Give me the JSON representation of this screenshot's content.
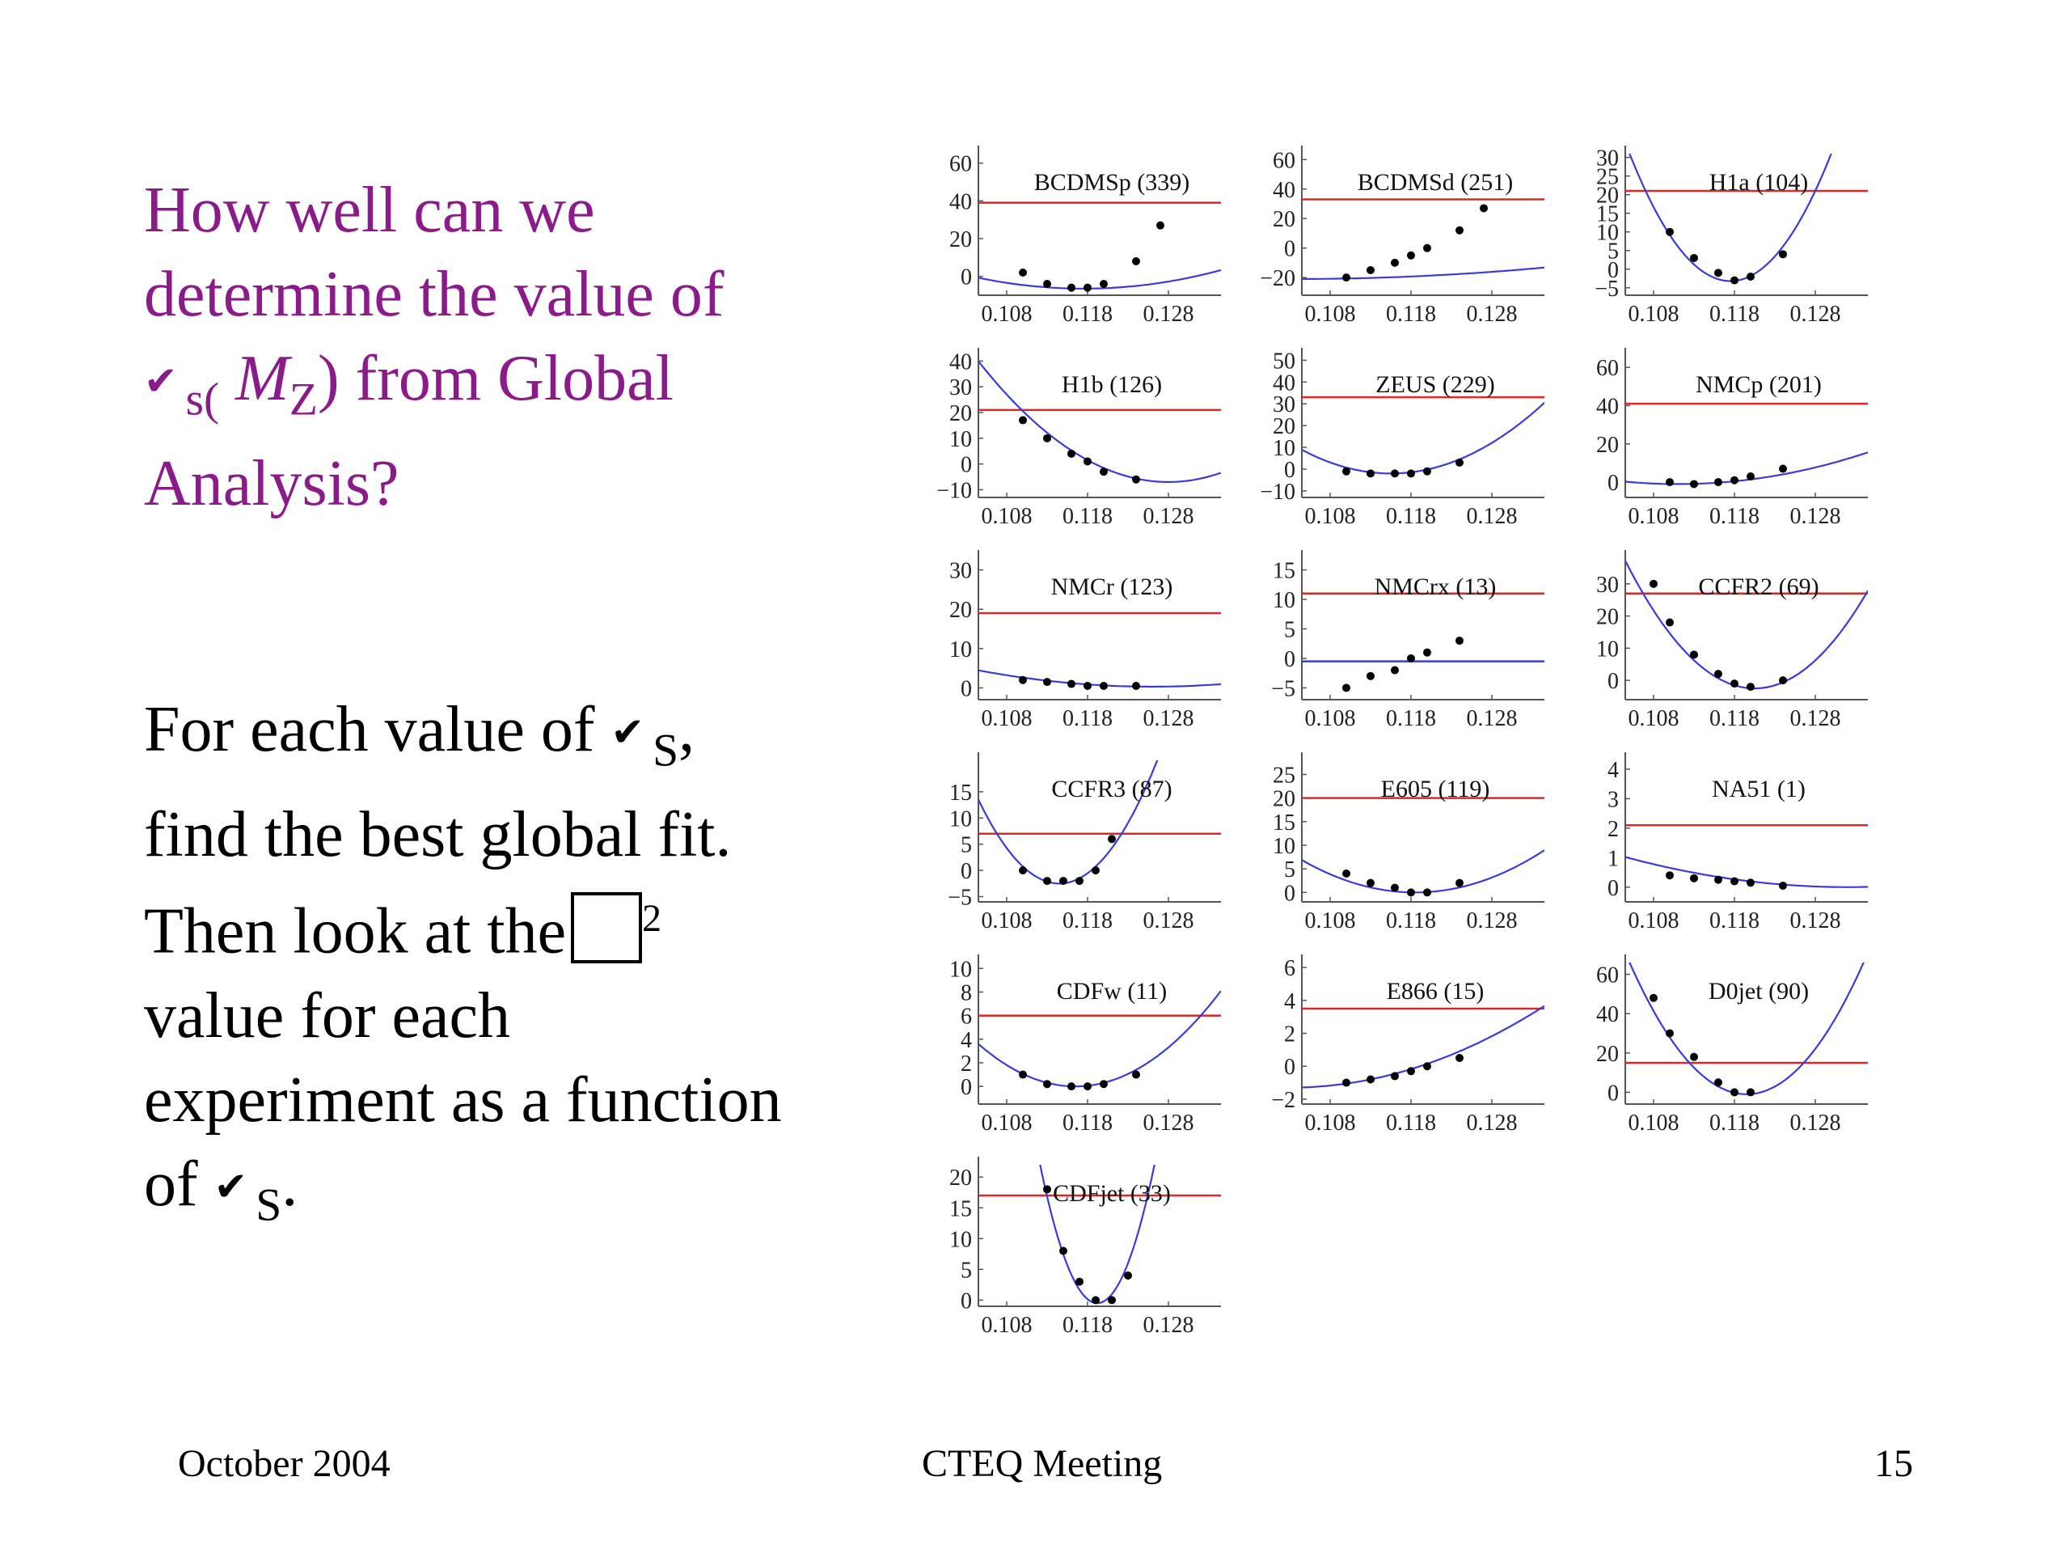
{
  "slide": {
    "title_lines": [
      {
        "text": "How well can we"
      },
      {
        "text": "determine the value of"
      },
      {
        "pre": "s(",
        "mz": "M",
        "mzsub": "Z",
        "post": ") from Global"
      },
      {
        "text": "Analysis?"
      }
    ],
    "body_lines": [
      {
        "pre": "For each value of",
        "sub": "S",
        "post": ","
      },
      {
        "text": "find the best global fit."
      },
      {
        "pre": "Then look at the",
        "sup": "2"
      },
      {
        "text": "value for each"
      },
      {
        "text": "experiment as a function"
      },
      {
        "pre": "of",
        "sub": "S",
        "post": "."
      }
    ],
    "icons": {
      "alpha_symbol": "check-mark-icon",
      "chi_symbol": "empty-box-icon"
    },
    "colors": {
      "title": "#8b1a8b",
      "body": "#000000",
      "curve": "#3b3bd6",
      "threshold": "#d62a2a",
      "points": "#000000"
    },
    "footer": {
      "date": "October 2004",
      "meeting": "CTEQ Meeting",
      "page": "15"
    }
  },
  "chart_data": [
    {
      "type": "scatter",
      "title": "BCDMSp (339)",
      "x": [
        0.11,
        0.113,
        0.116,
        0.118,
        0.12,
        0.124,
        0.127
      ],
      "y": [
        2,
        -4,
        -6,
        -6,
        -4,
        8,
        27
      ],
      "curve": {
        "x0": 0.1175,
        "a": 34000,
        "c": -6.5
      },
      "threshold": 39,
      "xticks": [
        0.108,
        0.118,
        0.128
      ],
      "yticks": [
        0,
        20,
        40,
        60
      ],
      "xlim": [
        0.1045,
        0.1345
      ],
      "ylim": [
        -10,
        65
      ]
    },
    {
      "type": "scatter",
      "title": "BCDMSd (251)",
      "x": [
        0.11,
        0.113,
        0.116,
        0.118,
        0.12,
        0.124,
        0.127
      ],
      "y": [
        -20,
        -15,
        -10,
        -5,
        0,
        12,
        27
      ],
      "curve": {
        "x0": 0.1035,
        "a": 8100,
        "c": -21
      },
      "threshold": 33,
      "xticks": [
        0.108,
        0.118,
        0.128
      ],
      "yticks": [
        -20,
        0,
        20,
        40,
        60
      ],
      "xlim": [
        0.1045,
        0.1345
      ],
      "ylim": [
        -32,
        64
      ]
    },
    {
      "type": "scatter",
      "title": "H1a (104)",
      "x": [
        0.11,
        0.113,
        0.116,
        0.118,
        0.12,
        0.124
      ],
      "y": [
        10,
        3,
        -1,
        -3,
        -2,
        4
      ],
      "curve": {
        "x0": 0.1175,
        "a": 220000,
        "c": -3.2
      },
      "threshold": 21,
      "xticks": [
        0.108,
        0.118,
        0.128
      ],
      "yticks": [
        -5,
        0,
        5,
        10,
        15,
        20,
        25,
        30
      ],
      "xlim": [
        0.1045,
        0.1345
      ],
      "ylim": [
        -7,
        31
      ]
    },
    {
      "type": "scatter",
      "title": "H1b (126)",
      "x": [
        0.11,
        0.113,
        0.116,
        0.118,
        0.12,
        0.124
      ],
      "y": [
        17,
        10,
        4,
        1,
        -3,
        -6
      ],
      "curve": {
        "x0": 0.128,
        "a": 85000,
        "c": -7
      },
      "threshold": 21,
      "xticks": [
        0.108,
        0.118,
        0.128
      ],
      "yticks": [
        -10,
        0,
        10,
        20,
        30,
        40
      ],
      "xlim": [
        0.1045,
        0.1345
      ],
      "ylim": [
        -13,
        42
      ]
    },
    {
      "type": "scatter",
      "title": "ZEUS (229)",
      "x": [
        0.11,
        0.113,
        0.116,
        0.118,
        0.12,
        0.124
      ],
      "y": [
        -1,
        -2,
        -2,
        -2,
        -1,
        3
      ],
      "curve": {
        "x0": 0.1155,
        "a": 90000,
        "c": -2
      },
      "threshold": 33,
      "xticks": [
        0.108,
        0.118,
        0.128
      ],
      "yticks": [
        -10,
        0,
        10,
        20,
        30,
        40,
        50
      ],
      "xlim": [
        0.1045,
        0.1345
      ],
      "ylim": [
        -13,
        52
      ]
    },
    {
      "type": "scatter",
      "title": "NMCp (201)",
      "x": [
        0.11,
        0.113,
        0.116,
        0.118,
        0.12,
        0.124
      ],
      "y": [
        0,
        -1,
        0,
        1,
        3,
        7
      ],
      "curve": {
        "x0": 0.111,
        "a": 30000,
        "c": -1
      },
      "threshold": 41,
      "xticks": [
        0.108,
        0.118,
        0.128
      ],
      "yticks": [
        0,
        20,
        40,
        60
      ],
      "xlim": [
        0.1045,
        0.1345
      ],
      "ylim": [
        -8,
        66
      ]
    },
    {
      "type": "scatter",
      "title": "NMCr (123)",
      "x": [
        0.11,
        0.113,
        0.116,
        0.118,
        0.12,
        0.124
      ],
      "y": [
        2,
        1.5,
        1,
        0.5,
        0.5,
        0.5
      ],
      "curve": {
        "x0": 0.126,
        "a": 9000,
        "c": 0.3
      },
      "threshold": 19,
      "xticks": [
        0.108,
        0.118,
        0.128
      ],
      "yticks": [
        0,
        10,
        20,
        30
      ],
      "xlim": [
        0.1045,
        0.1345
      ],
      "ylim": [
        -3,
        33
      ]
    },
    {
      "type": "scatter",
      "title": "NMCrx (13)",
      "x": [
        0.11,
        0.113,
        0.116,
        0.118,
        0.12,
        0.124
      ],
      "y": [
        -5,
        -3,
        -2,
        0,
        1,
        3
      ],
      "line": -0.5,
      "threshold": 11,
      "xticks": [
        0.108,
        0.118,
        0.128
      ],
      "yticks": [
        -5,
        0,
        5,
        10,
        15
      ],
      "xlim": [
        0.1045,
        0.1345
      ],
      "ylim": [
        -7,
        17
      ]
    },
    {
      "type": "scatter",
      "title": "CCFR2 (69)",
      "x": [
        0.108,
        0.11,
        0.113,
        0.116,
        0.118,
        0.12,
        0.124
      ],
      "y": [
        30,
        18,
        8,
        2,
        -1,
        -2,
        0
      ],
      "curve": {
        "x0": 0.1205,
        "a": 155000,
        "c": -2.5
      },
      "threshold": 27,
      "xticks": [
        0.108,
        0.118,
        0.128
      ],
      "yticks": [
        0,
        10,
        20,
        30
      ],
      "xlim": [
        0.1045,
        0.1345
      ],
      "ylim": [
        -6,
        38
      ]
    },
    {
      "type": "scatter",
      "title": "CCFR3 (87)",
      "x": [
        0.11,
        0.113,
        0.115,
        0.117,
        0.119,
        0.121
      ],
      "y": [
        0,
        -2,
        -2,
        -2,
        0,
        6
      ],
      "curve": {
        "x0": 0.1145,
        "a": 160000,
        "c": -2.5
      },
      "threshold": 7,
      "xticks": [
        0.108,
        0.118,
        0.128
      ],
      "yticks": [
        -5,
        0,
        5,
        10,
        15
      ],
      "xlim": [
        0.1045,
        0.1345
      ],
      "ylim": [
        -6,
        21
      ]
    },
    {
      "type": "scatter",
      "title": "E605 (119)",
      "x": [
        0.11,
        0.113,
        0.116,
        0.118,
        0.12,
        0.124
      ],
      "y": [
        4,
        2,
        1,
        0,
        0,
        2
      ],
      "curve": {
        "x0": 0.1185,
        "a": 35000,
        "c": 0
      },
      "threshold": 20,
      "xticks": [
        0.108,
        0.118,
        0.128
      ],
      "yticks": [
        0,
        5,
        10,
        15,
        20,
        25
      ],
      "xlim": [
        0.1045,
        0.1345
      ],
      "ylim": [
        -2,
        28
      ]
    },
    {
      "type": "scatter",
      "title": "NA51 (1)",
      "x": [
        0.11,
        0.113,
        0.116,
        0.118,
        0.12,
        0.124
      ],
      "y": [
        0.4,
        0.3,
        0.25,
        0.2,
        0.15,
        0.05
      ],
      "curve": {
        "x0": 0.132,
        "a": 1350,
        "c": 0
      },
      "threshold": 2.1,
      "xticks": [
        0.108,
        0.118,
        0.128
      ],
      "yticks": [
        0,
        1,
        2,
        3,
        4
      ],
      "xlim": [
        0.1045,
        0.1345
      ],
      "ylim": [
        -0.5,
        4.3
      ]
    },
    {
      "type": "scatter",
      "title": "CDFw (11)",
      "x": [
        0.11,
        0.113,
        0.116,
        0.118,
        0.12,
        0.124
      ],
      "y": [
        1,
        0.2,
        0,
        0,
        0.2,
        1
      ],
      "curve": {
        "x0": 0.1165,
        "a": 25000,
        "c": 0
      },
      "threshold": 6,
      "xticks": [
        0.108,
        0.118,
        0.128
      ],
      "yticks": [
        0,
        2,
        4,
        6,
        8,
        10
      ],
      "xlim": [
        0.1045,
        0.1345
      ],
      "ylim": [
        -1.5,
        10.5
      ]
    },
    {
      "type": "scatter",
      "title": "E866 (15)",
      "x": [
        0.11,
        0.113,
        0.116,
        0.118,
        0.12,
        0.124
      ],
      "y": [
        -1,
        -0.8,
        -0.6,
        -0.3,
        0,
        0.5
      ],
      "curve": {
        "x0": 0.103,
        "a": 5000,
        "c": -1.3
      },
      "threshold": 3.5,
      "xticks": [
        0.108,
        0.118,
        0.128
      ],
      "yticks": [
        -2,
        0,
        2,
        4,
        6
      ],
      "xlim": [
        0.1045,
        0.1345
      ],
      "ylim": [
        -2.3,
        6.3
      ]
    },
    {
      "type": "scatter",
      "title": "D0jet (90)",
      "x": [
        0.108,
        0.11,
        0.113,
        0.116,
        0.118,
        0.12
      ],
      "y": [
        48,
        30,
        18,
        5,
        0,
        0
      ],
      "curve": {
        "x0": 0.1195,
        "a": 320000,
        "c": -1
      },
      "threshold": 15,
      "xticks": [
        0.108,
        0.118,
        0.128
      ],
      "yticks": [
        0,
        20,
        40,
        60
      ],
      "xlim": [
        0.1045,
        0.1345
      ],
      "ylim": [
        -6,
        66
      ]
    },
    {
      "type": "scatter",
      "title": "CDFjet (33)",
      "x": [
        0.113,
        0.115,
        0.117,
        0.119,
        0.121,
        0.123
      ],
      "y": [
        18,
        8,
        3,
        0,
        0,
        4
      ],
      "curve": {
        "x0": 0.1192,
        "a": 450000,
        "c": -0.5
      },
      "threshold": 17,
      "xticks": [
        0.108,
        0.118,
        0.128
      ],
      "yticks": [
        0,
        5,
        10,
        15,
        20
      ],
      "xlim": [
        0.1045,
        0.1345
      ],
      "ylim": [
        -1,
        22
      ]
    }
  ]
}
